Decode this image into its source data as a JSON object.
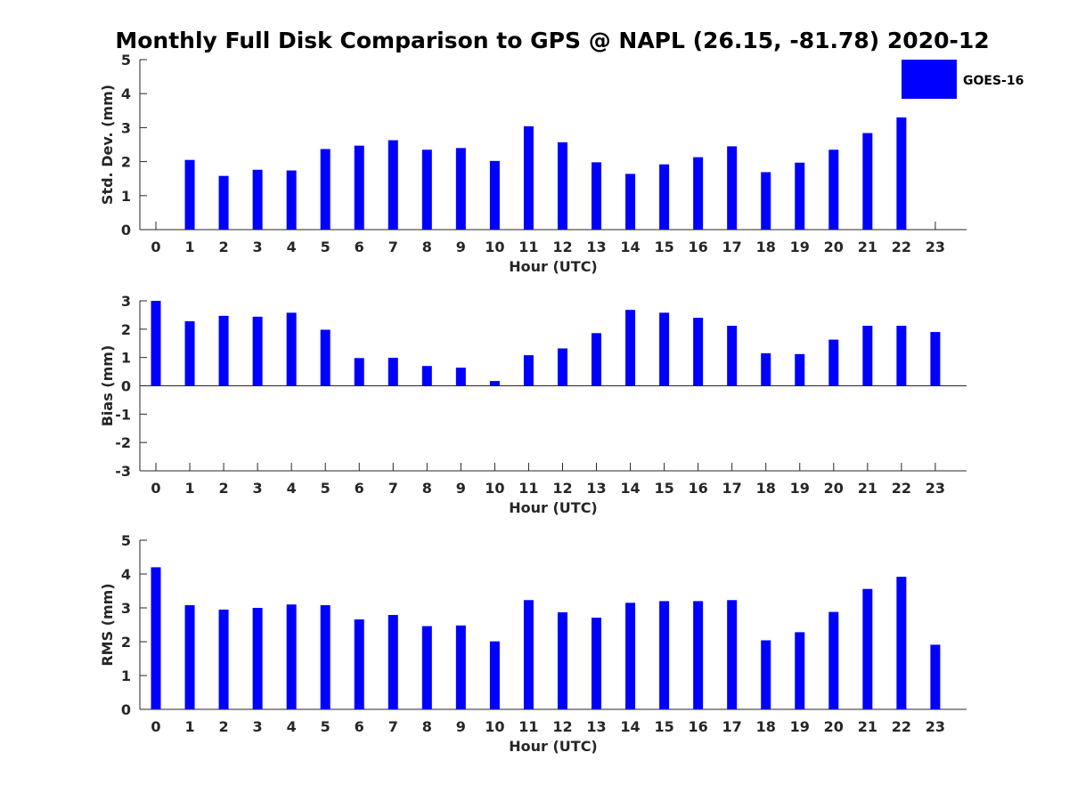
{
  "title": "Monthly Full Disk Comparison to GPS @ NAPL (26.15, -81.78) 2020-12",
  "legend": {
    "label": "GOES-16",
    "color": "#0000ff"
  },
  "chart_data": [
    {
      "type": "bar",
      "xlabel": "Hour (UTC)",
      "ylabel": "Std. Dev. (mm)",
      "x": [
        0,
        1,
        2,
        3,
        4,
        5,
        6,
        7,
        8,
        9,
        10,
        11,
        12,
        13,
        14,
        15,
        16,
        17,
        18,
        19,
        20,
        21,
        22,
        23
      ],
      "values": [
        null,
        2.05,
        1.58,
        1.76,
        1.74,
        2.37,
        2.47,
        2.63,
        2.35,
        2.4,
        2.02,
        3.04,
        2.57,
        1.98,
        1.64,
        1.92,
        2.13,
        2.45,
        1.69,
        1.97,
        2.35,
        2.84,
        3.3,
        null
      ],
      "ylim": [
        0,
        5
      ],
      "yticks": [
        0,
        1,
        2,
        3,
        4,
        5
      ],
      "legend_position": "top-right",
      "grid": false
    },
    {
      "type": "bar",
      "xlabel": "Hour (UTC)",
      "ylabel": "Bias (mm)",
      "x": [
        0,
        1,
        2,
        3,
        4,
        5,
        6,
        7,
        8,
        9,
        10,
        11,
        12,
        13,
        14,
        15,
        16,
        17,
        18,
        19,
        20,
        21,
        22,
        23
      ],
      "values": [
        3.0,
        2.28,
        2.47,
        2.44,
        2.58,
        1.98,
        0.98,
        0.99,
        0.7,
        0.64,
        0.17,
        1.08,
        1.32,
        1.86,
        2.68,
        2.58,
        2.4,
        2.12,
        1.15,
        1.12,
        1.63,
        2.12,
        2.12,
        1.9
      ],
      "ylim": [
        -3,
        3
      ],
      "yticks": [
        -3,
        -2,
        -1,
        0,
        1,
        2,
        3
      ],
      "zero_line": true,
      "grid": false
    },
    {
      "type": "bar",
      "xlabel": "Hour (UTC)",
      "ylabel": "RMS (mm)",
      "x": [
        0,
        1,
        2,
        3,
        4,
        5,
        6,
        7,
        8,
        9,
        10,
        11,
        12,
        13,
        14,
        15,
        16,
        17,
        18,
        19,
        20,
        21,
        22,
        23
      ],
      "values": [
        4.2,
        3.08,
        2.95,
        3.0,
        3.1,
        3.08,
        2.66,
        2.79,
        2.46,
        2.48,
        2.01,
        3.23,
        2.87,
        2.71,
        3.15,
        3.2,
        3.2,
        3.23,
        2.04,
        2.28,
        2.88,
        3.56,
        3.92,
        1.91
      ],
      "ylim": [
        0,
        5
      ],
      "yticks": [
        0,
        1,
        2,
        3,
        4,
        5
      ],
      "grid": false
    }
  ]
}
